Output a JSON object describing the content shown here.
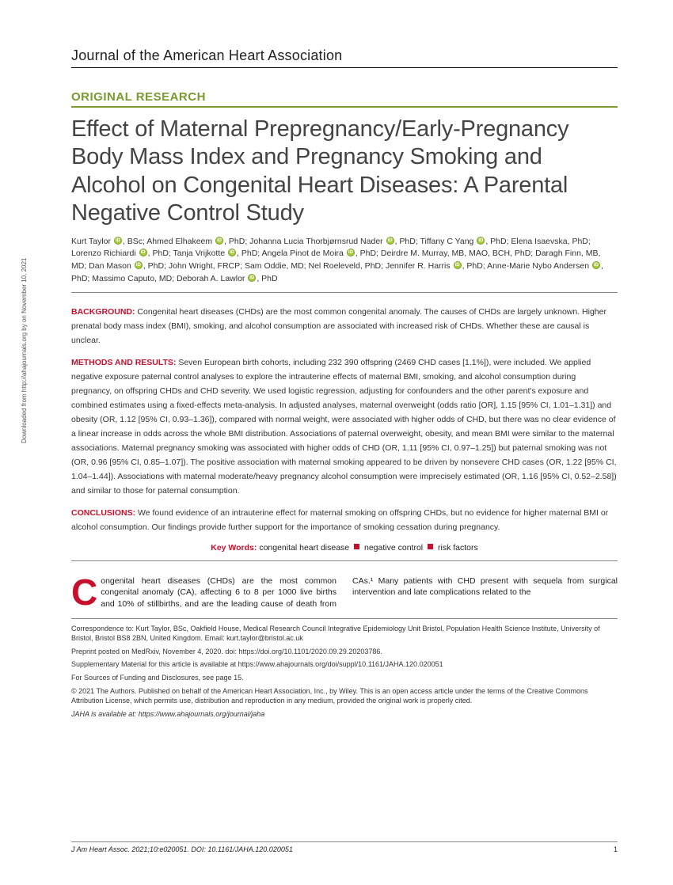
{
  "journal_name": "Journal of the American Heart Association",
  "section_label": "ORIGINAL RESEARCH",
  "article_title": "Effect of Maternal Prepregnancy/Early-Pregnancy Body Mass Index and Pregnancy Smoking and Alcohol on Congenital Heart Diseases: A Parental Negative Control Study",
  "authors_html": "Kurt Taylor <span class='orcid'></span>, BSc; Ahmed Elhakeem <span class='orcid'></span>, PhD; Johanna Lucia Thorbjørnsrud Nader <span class='orcid'></span>, PhD; Tiffany C Yang <span class='orcid'></span>, PhD; Elena Isaevska, PhD; Lorenzo Richiardi <span class='orcid'></span>, PhD; Tanja Vrijkotte <span class='orcid'></span>, PhD; Angela Pinot de Moira <span class='orcid'></span>, PhD; Deirdre M. Murray, MB, MAO, BCH, PhD; Daragh Finn, MB, MD; Dan Mason <span class='orcid'></span>, PhD; John Wright, FRCP; Sam Oddie, MD; Nel Roeleveld, PhD; Jennifer R. Harris <span class='orcid'></span>, PhD; Anne-Marie Nybo Andersen <span class='orcid'></span>, PhD; Massimo Caputo, MD; Deborah A. Lawlor <span class='orcid'></span>, PhD",
  "abstract": {
    "background": {
      "label": "BACKGROUND:",
      "text": " Congenital heart diseases (CHDs) are the most common congenital anomaly. The causes of CHDs are largely unknown. Higher prenatal body mass index (BMI), smoking, and alcohol consumption are associated with increased risk of CHDs. Whether these are causal is unclear."
    },
    "methods": {
      "label": "METHODS AND RESULTS:",
      "text": " Seven European birth cohorts, including 232 390 offspring (2469 CHD cases [1.1%]), were included. We applied negative exposure paternal control analyses to explore the intrauterine effects of maternal BMI, smoking, and alcohol consumption during pregnancy, on offspring CHDs and CHD severity. We used logistic regression, adjusting for confounders and the other parent's exposure and combined estimates using a fixed-effects meta-analysis. In adjusted analyses, maternal overweight (odds ratio [OR], 1.15 [95% CI, 1.01–1.31]) and obesity (OR, 1.12 [95% CI, 0.93–1.36]), compared with normal weight, were associated with higher odds of CHD, but there was no clear evidence of a linear increase in odds across the whole BMI distribution. Associations of paternal overweight, obesity, and mean BMI were similar to the maternal associations. Maternal pregnancy smoking was associated with higher odds of CHD (OR, 1.11 [95% CI, 0.97–1.25]) but paternal smoking was not (OR, 0.96 [95% CI, 0.85–1.07]). The positive association with maternal smoking appeared to be driven by nonsevere CHD cases (OR, 1.22 [95% CI, 1.04–1.44]). Associations with maternal moderate/heavy pregnancy alcohol consumption were imprecisely estimated (OR, 1.16 [95% CI, 0.52–2.58]) and similar to those for paternal consumption."
    },
    "conclusions": {
      "label": "CONCLUSIONS:",
      "text": " We found evidence of an intrauterine effect for maternal smoking on offspring CHDs, but no evidence for higher maternal BMI or alcohol consumption. Our findings provide further support for the importance of smoking cessation during pregnancy."
    }
  },
  "keywords": {
    "label": "Key Words:",
    "items": [
      "congenital heart disease",
      "negative control",
      "risk factors"
    ]
  },
  "body": {
    "col1_first": "C",
    "col1_rest": "ongenital heart diseases (CHDs) are the most common congenital anomaly (CA), affecting 6 to 8 per 1000 live births and 10% of stillbirths,",
    "col2": "and are the leading cause of death from CAs.¹ Many patients with CHD present with sequela from surgical intervention and late complications related to the"
  },
  "footer": {
    "correspondence": "Correspondence to: Kurt Taylor, BSc, Oakfield House, Medical Research Council Integrative Epidemiology Unit Bristol, Population Health Science Institute, University of Bristol, Bristol BS8 2BN, United Kingdom. Email: kurt.taylor@bristol.ac.uk",
    "preprint": "Preprint posted on MedRxiv, November 4, 2020. doi: https://doi.org/10.1101/2020.09.29.20203786.",
    "supplementary": "Supplementary Material for this article is available at https://www.ahajournals.org/doi/suppl/10.1161/JAHA.120.020051",
    "sources": "For Sources of Funding and Disclosures, see page 15.",
    "copyright": "© 2021 The Authors. Published on behalf of the American Heart Association, Inc., by Wiley. This is an open access article under the terms of the Creative Commons Attribution License, which permits use, distribution and reproduction in any medium, provided the original work is properly cited.",
    "jaha_avail": "JAHA is available at: https://www.ahajournals.org/journal/jaha"
  },
  "page_footer": {
    "citation": "J Am Heart Assoc. 2021;10:e020051. DOI: 10.1161/JAHA.120.020051",
    "page": "1"
  },
  "side_text": "Downloaded from http://ahajournals.org by on November 10, 2021",
  "colors": {
    "accent_green": "#7a9a2e",
    "accent_red": "#c8102e",
    "orcid_green": "#a6ce39"
  }
}
